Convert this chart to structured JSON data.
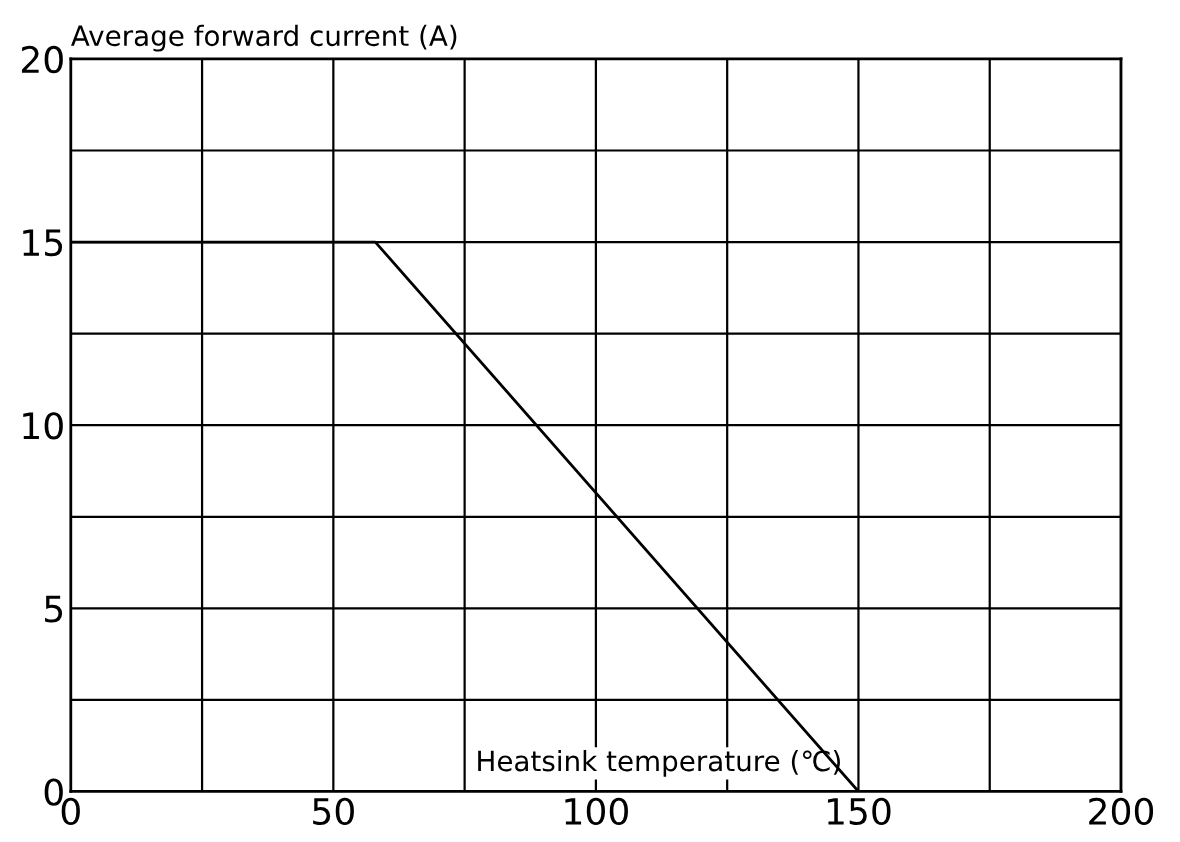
{
  "chart_data": {
    "type": "line",
    "xlabel": "Heatsink temperature (℃)",
    "ylabel": "Average forward current (A)",
    "x": [
      0,
      58,
      150
    ],
    "series": [
      {
        "color": "#000000",
        "values": [
          15,
          15,
          0
        ]
      }
    ],
    "xlim": [
      0,
      200
    ],
    "ylim": [
      0,
      20
    ],
    "xticks": [
      0,
      {
        "value": 25,
        "label": null
      },
      50,
      {
        "value": 75,
        "label": null
      },
      100,
      {
        "value": 125,
        "label": null
      },
      150,
      {
        "value": 175,
        "label": null
      },
      200
    ],
    "yticks": [
      0,
      {
        "value": 2.5,
        "label": null
      },
      5,
      {
        "value": 7.5,
        "label": null
      },
      10,
      {
        "value": 12.5,
        "label": null
      },
      15,
      {
        "value": 17.5,
        "label": null
      },
      20
    ],
    "grid": true,
    "legend": false,
    "marker": "none",
    "line_style": "solid"
  }
}
